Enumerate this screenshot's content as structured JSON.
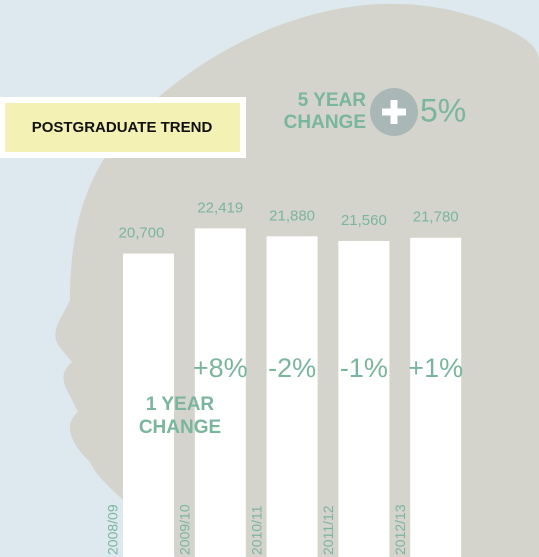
{
  "chart_data": {
    "type": "bar",
    "title": "POSTGRADUATE TREND",
    "categories": [
      "2008/09",
      "2009/10",
      "2010/11",
      "2011/12",
      "2012/13"
    ],
    "values": [
      20700,
      22419,
      21880,
      21560,
      21780
    ],
    "value_labels": [
      "20,700",
      "22,419",
      "21,880",
      "21,560",
      "21,780"
    ],
    "color": "#ffffff",
    "ylim": [
      0,
      38000
    ],
    "one_year_change": {
      "lines": [
        "1 YEAR",
        "CHANGE"
      ],
      "labels": [
        "+8%",
        "-2%",
        "-1%",
        "+1%"
      ]
    },
    "five_year_change": {
      "lines": [
        "5 YEAR",
        "CHANGE"
      ],
      "label": "5%"
    }
  }
}
